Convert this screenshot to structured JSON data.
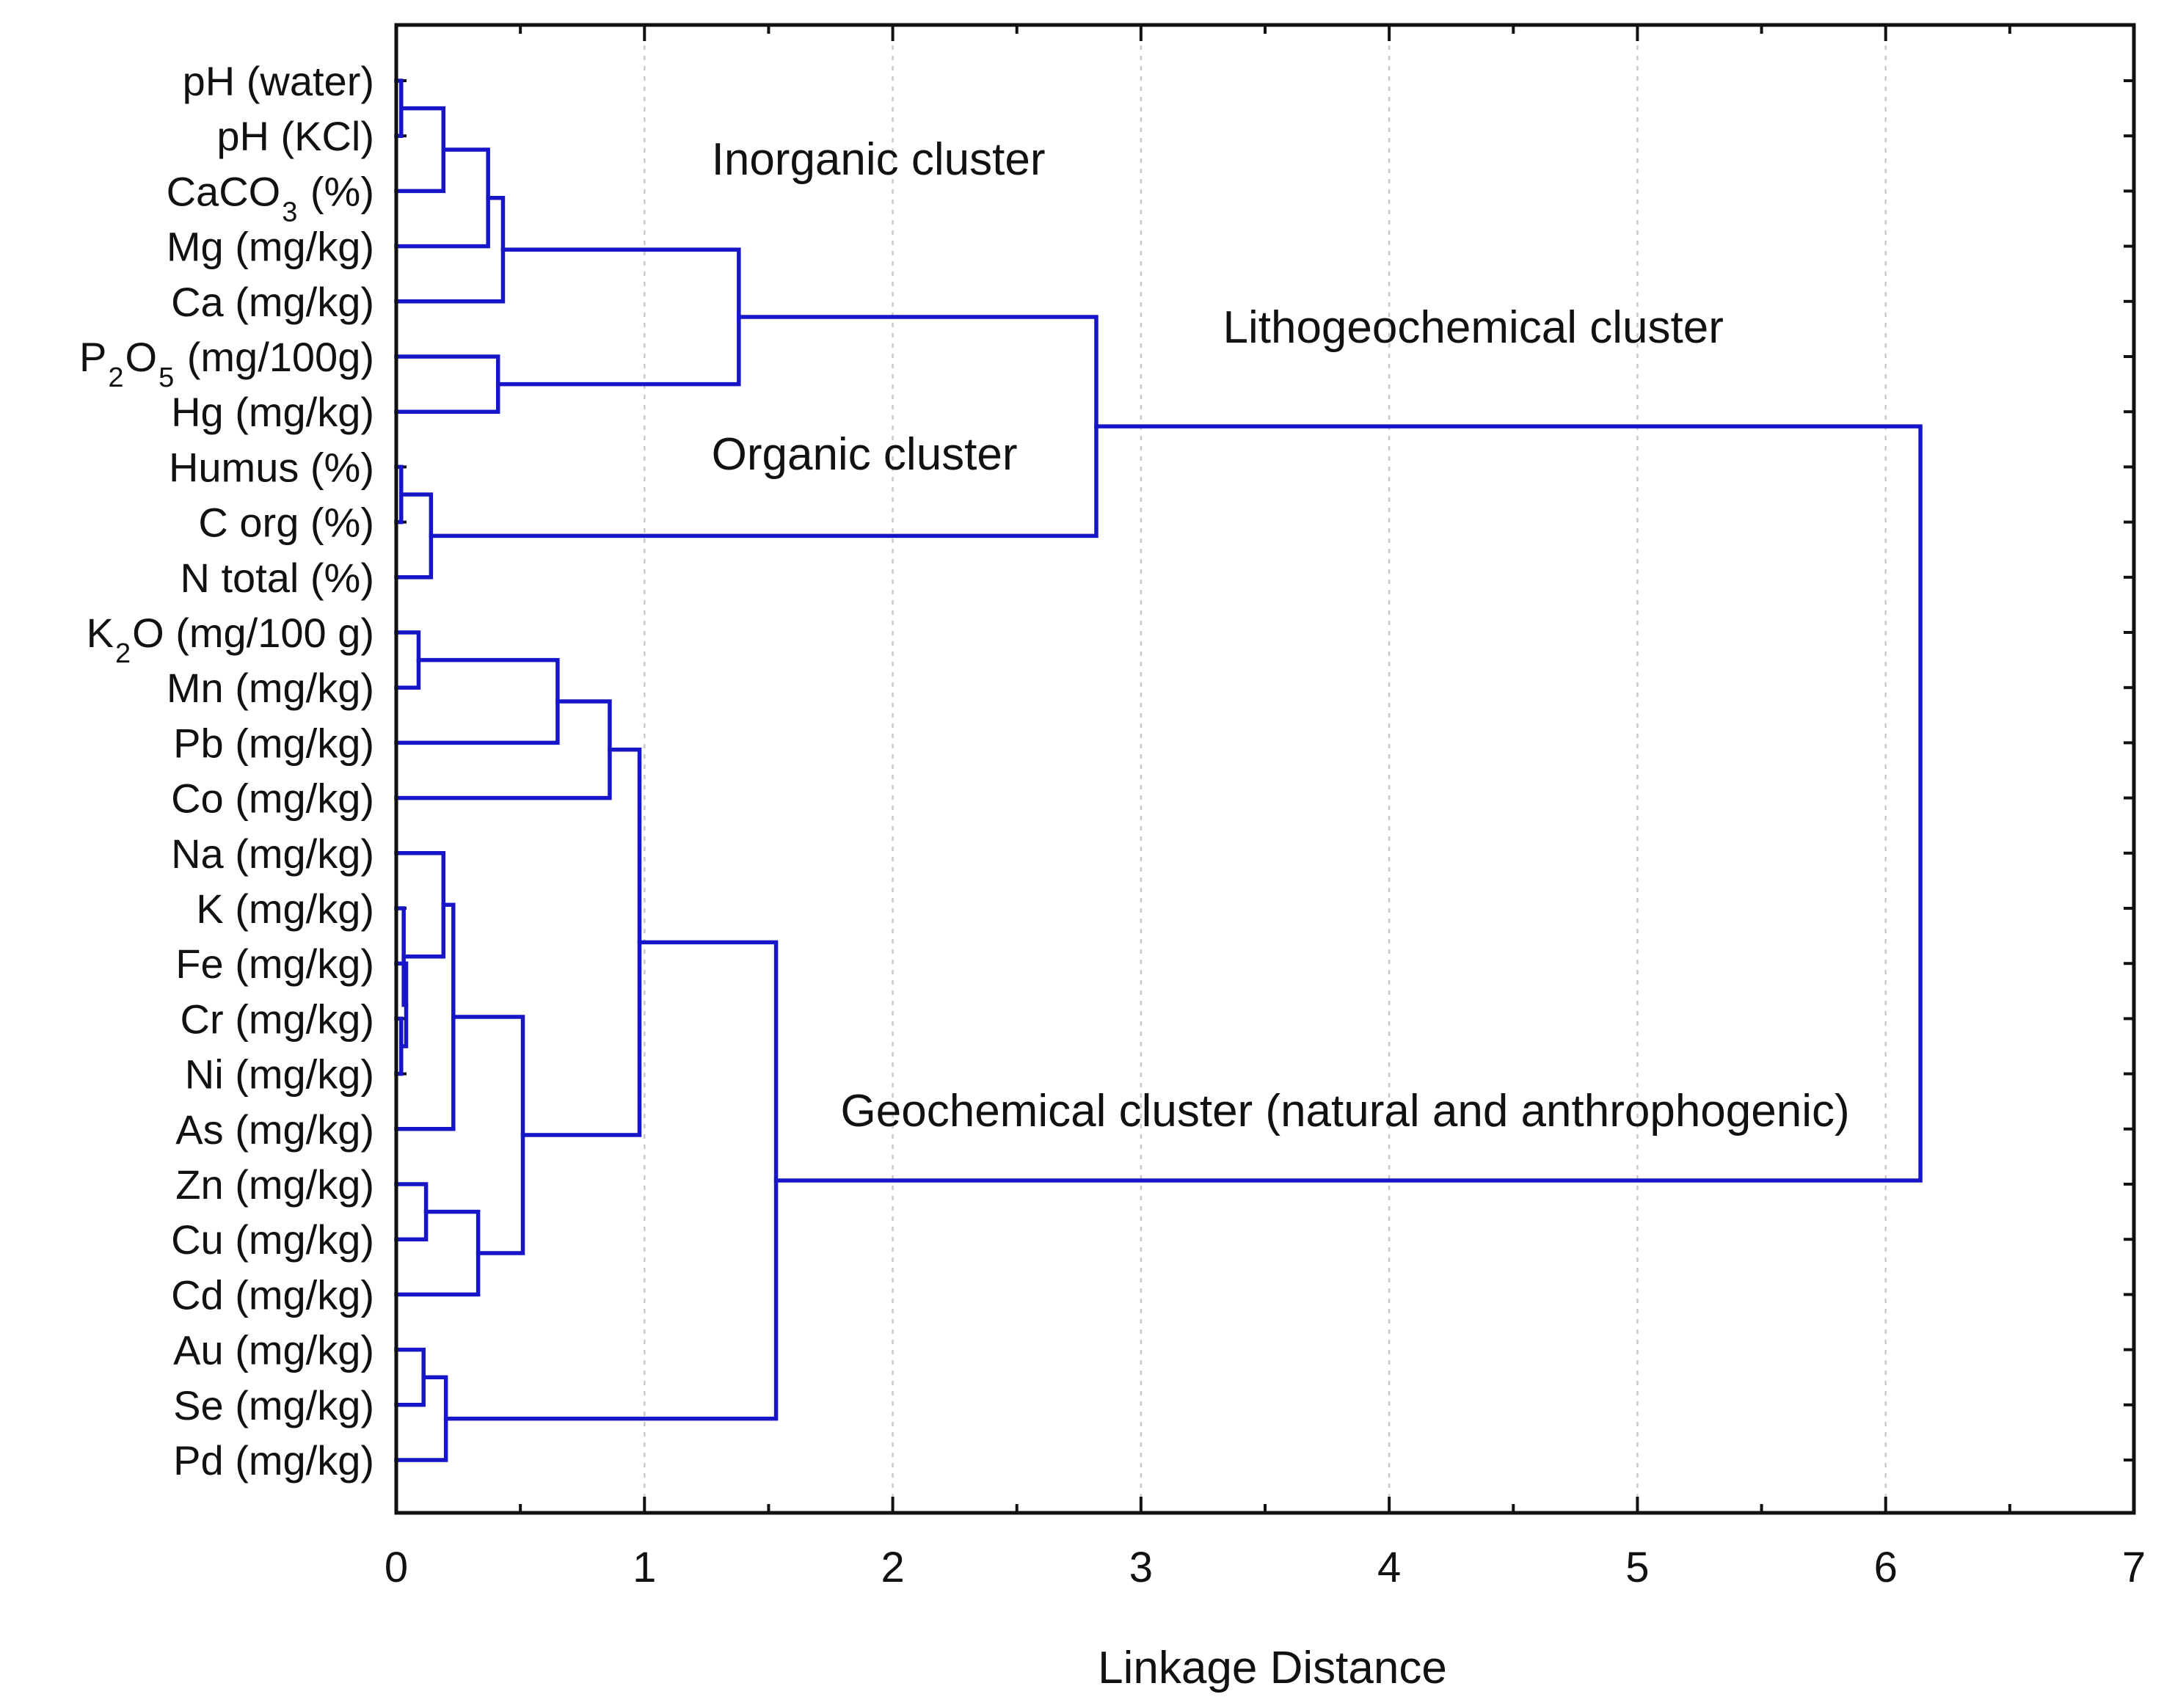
{
  "chart_data": {
    "type": "dendrogram",
    "orientation": "horizontal",
    "xlabel": "Linkage Distance",
    "xlim": [
      0,
      7
    ],
    "x_ticks": [
      0,
      1,
      2,
      3,
      4,
      5,
      6,
      7
    ],
    "grid": "vertical dashed at major ticks",
    "line_color": "#1616c8",
    "leaves": [
      {
        "base": "pH (water)",
        "sub": "",
        "rest": ""
      },
      {
        "base": "pH (KCl)",
        "sub": "",
        "rest": ""
      },
      {
        "base": "CaCO",
        "sub": "3",
        "rest": " (%)"
      },
      {
        "base": "Mg (mg/kg)",
        "sub": "",
        "rest": ""
      },
      {
        "base": "Ca (mg/kg)",
        "sub": "",
        "rest": ""
      },
      {
        "base": "P",
        "sub": "2",
        "rest": "O",
        "sub2": "5",
        "rest2": " (mg/100g)"
      },
      {
        "base": "Hg (mg/kg)",
        "sub": "",
        "rest": ""
      },
      {
        "base": "Humus (%)",
        "sub": "",
        "rest": ""
      },
      {
        "base": "C org (%)",
        "sub": "",
        "rest": ""
      },
      {
        "base": "N total (%)",
        "sub": "",
        "rest": ""
      },
      {
        "base": "K",
        "sub": "2",
        "rest": "O (mg/100 g)"
      },
      {
        "base": "Mn (mg/kg)",
        "sub": "",
        "rest": ""
      },
      {
        "base": "Pb (mg/kg)",
        "sub": "",
        "rest": ""
      },
      {
        "base": "Co (mg/kg)",
        "sub": "",
        "rest": ""
      },
      {
        "base": "Na (mg/kg)",
        "sub": "",
        "rest": ""
      },
      {
        "base": "K (mg/kg)",
        "sub": "",
        "rest": ""
      },
      {
        "base": "Fe (mg/kg)",
        "sub": "",
        "rest": ""
      },
      {
        "base": "Cr (mg/kg)",
        "sub": "",
        "rest": ""
      },
      {
        "base": "Ni (mg/kg)",
        "sub": "",
        "rest": ""
      },
      {
        "base": "As (mg/kg)",
        "sub": "",
        "rest": ""
      },
      {
        "base": "Zn (mg/kg)",
        "sub": "",
        "rest": ""
      },
      {
        "base": "Cu (mg/kg)",
        "sub": "",
        "rest": ""
      },
      {
        "base": "Cd (mg/kg)",
        "sub": "",
        "rest": ""
      },
      {
        "base": "Au (mg/kg)",
        "sub": "",
        "rest": ""
      },
      {
        "base": "Se (mg/kg)",
        "sub": "",
        "rest": ""
      },
      {
        "base": "Pd (mg/kg)",
        "sub": "",
        "rest": ""
      }
    ],
    "merges": [
      {
        "children": [
          0,
          1
        ],
        "distance": 0.02
      },
      {
        "children": [
          26,
          2
        ],
        "distance": 0.19
      },
      {
        "children": [
          27,
          3
        ],
        "distance": 0.37
      },
      {
        "children": [
          28,
          4
        ],
        "distance": 0.43
      },
      {
        "children": [
          5,
          6
        ],
        "distance": 0.41
      },
      {
        "children": [
          29,
          30
        ],
        "distance": 1.38
      },
      {
        "children": [
          7,
          8
        ],
        "distance": 0.02
      },
      {
        "children": [
          32,
          9
        ],
        "distance": 0.14
      },
      {
        "children": [
          31,
          33
        ],
        "distance": 2.82
      },
      {
        "children": [
          10,
          11
        ],
        "distance": 0.09
      },
      {
        "children": [
          35,
          12
        ],
        "distance": 0.65
      },
      {
        "children": [
          36,
          13
        ],
        "distance": 0.86
      },
      {
        "children": [
          17,
          18
        ],
        "distance": 0.02
      },
      {
        "children": [
          16,
          38
        ],
        "distance": 0.04
      },
      {
        "children": [
          15,
          39
        ],
        "distance": 0.03
      },
      {
        "children": [
          14,
          40
        ],
        "distance": 0.19
      },
      {
        "children": [
          41,
          19
        ],
        "distance": 0.23
      },
      {
        "children": [
          20,
          21
        ],
        "distance": 0.12
      },
      {
        "children": [
          43,
          22
        ],
        "distance": 0.33
      },
      {
        "children": [
          42,
          44
        ],
        "distance": 0.51
      },
      {
        "children": [
          37,
          45
        ],
        "distance": 0.98
      },
      {
        "children": [
          23,
          24
        ],
        "distance": 0.11
      },
      {
        "children": [
          47,
          25
        ],
        "distance": 0.2
      },
      {
        "children": [
          46,
          48
        ],
        "distance": 1.53
      },
      {
        "children": [
          34,
          49
        ],
        "distance": 6.14
      }
    ],
    "annotations": [
      {
        "text": "Inorganic cluster",
        "x": 1.27,
        "row": 1.7
      },
      {
        "text": "Lithogeochemical cluster",
        "x": 3.33,
        "row": 4.75
      },
      {
        "text": "Organic cluster",
        "x": 1.27,
        "row": 7.05
      },
      {
        "text": "Geochemical cluster (natural and anthrophogenic)",
        "x": 1.79,
        "row": 18.95
      }
    ]
  }
}
